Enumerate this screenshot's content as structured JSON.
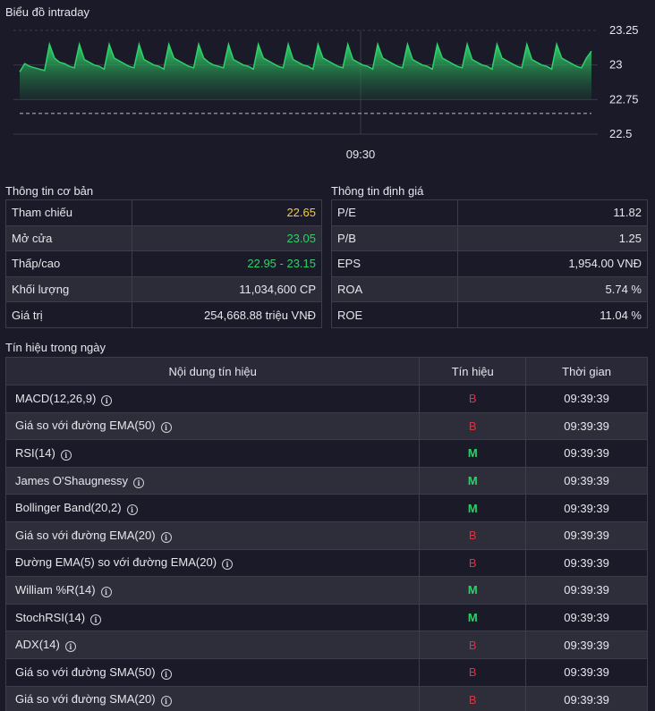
{
  "chart_section": {
    "title": "Biểu đồ intraday"
  },
  "chart_data": {
    "type": "area",
    "title": "Biểu đồ intraday",
    "x_ticks": [
      "09:30"
    ],
    "y_ticks": [
      23.25,
      23,
      22.75,
      22.5
    ],
    "ylim": [
      22.5,
      23.25
    ],
    "reference_line": 22.65,
    "baseline": 22.75,
    "grid": true,
    "series": [
      {
        "values": [
          22.95,
          23.01,
          22.99,
          22.98,
          22.97,
          22.96,
          23.15,
          23.05,
          23.02,
          23.01,
          22.99,
          22.98,
          23.15,
          23.04,
          23.02,
          23.0,
          22.99,
          22.97,
          23.15,
          23.05,
          23.03,
          23.01,
          22.99,
          22.98,
          23.15,
          23.04,
          23.02,
          23.0,
          22.99,
          22.97,
          23.15,
          23.05,
          23.03,
          23.01,
          22.99,
          22.98,
          23.15,
          23.05,
          23.02,
          23.0,
          22.99,
          22.98,
          23.15,
          23.04,
          23.02,
          23.0,
          22.99,
          22.97,
          23.15,
          23.05,
          23.03,
          23.01,
          22.99,
          22.98,
          23.15,
          23.04,
          23.02,
          23.0,
          22.99,
          22.97,
          23.15,
          23.05,
          23.03,
          23.01,
          22.99,
          22.98,
          23.15,
          23.04,
          23.02,
          23.0,
          22.99,
          22.97,
          23.15,
          23.05,
          23.03,
          23.01,
          22.99,
          22.98,
          23.15,
          23.04,
          23.02,
          23.0,
          22.99,
          22.97,
          23.15,
          23.05,
          23.03,
          23.01,
          22.99,
          22.98,
          23.15,
          23.04,
          23.02,
          23.0,
          22.99,
          22.97,
          23.15,
          23.05,
          23.03,
          23.01,
          22.99,
          22.98,
          23.15,
          23.04,
          23.02,
          23.0,
          22.99,
          22.97,
          23.15,
          23.05,
          23.03,
          23.01,
          22.99,
          22.98,
          23.05,
          23.1
        ],
        "color": "#2fd06a"
      }
    ]
  },
  "basic_info": {
    "title": "Thông tin cơ bản",
    "rows": [
      {
        "label": "Tham chiếu",
        "value": "22.65"
      },
      {
        "label": "Mở cửa",
        "value": "23.05"
      },
      {
        "label": "Thấp/cao",
        "value": "22.95 - 23.15"
      },
      {
        "label": "Khối lượng",
        "value": "11,034,600 CP"
      },
      {
        "label": "Giá trị",
        "value": "254,668.88 triệu VNĐ"
      }
    ]
  },
  "valuation_info": {
    "title": "Thông tin định giá",
    "rows": [
      {
        "label": "P/E",
        "value": "11.82"
      },
      {
        "label": "P/B",
        "value": "1.25"
      },
      {
        "label": "EPS",
        "value": "1,954.00 VNĐ"
      },
      {
        "label": "ROA",
        "value": "5.74 %"
      },
      {
        "label": "ROE",
        "value": "11.04 %"
      }
    ]
  },
  "signals": {
    "title": "Tín hiệu trong ngày",
    "columns": [
      "Nội dung tín hiệu",
      "Tín hiệu",
      "Thời gian"
    ],
    "rows": [
      {
        "name": "MACD(12,26,9)",
        "signal": "B",
        "time": "09:39:39"
      },
      {
        "name": "Giá so với đường EMA(50)",
        "signal": "B",
        "time": "09:39:39"
      },
      {
        "name": "RSI(14)",
        "signal": "M",
        "time": "09:39:39"
      },
      {
        "name": "James O'Shaugnessy",
        "signal": "M",
        "time": "09:39:39"
      },
      {
        "name": "Bollinger Band(20,2)",
        "signal": "M",
        "time": "09:39:39"
      },
      {
        "name": "Giá so với đường EMA(20)",
        "signal": "B",
        "time": "09:39:39"
      },
      {
        "name": "Đường EMA(5) so với đường EMA(20)",
        "signal": "B",
        "time": "09:39:39"
      },
      {
        "name": "William %R(14)",
        "signal": "M",
        "time": "09:39:39"
      },
      {
        "name": "StochRSI(14)",
        "signal": "M",
        "time": "09:39:39"
      },
      {
        "name": "ADX(14)",
        "signal": "B",
        "time": "09:39:39"
      },
      {
        "name": "Giá so với đường SMA(50)",
        "signal": "B",
        "time": "09:39:39"
      },
      {
        "name": "Giá so với đường SMA(20)",
        "signal": "B",
        "time": "09:39:39"
      }
    ]
  },
  "colors": {
    "background": "#1b1a29",
    "positive": "#2fd06a",
    "negative": "#e0323e",
    "reference": "#f4cf3c"
  }
}
